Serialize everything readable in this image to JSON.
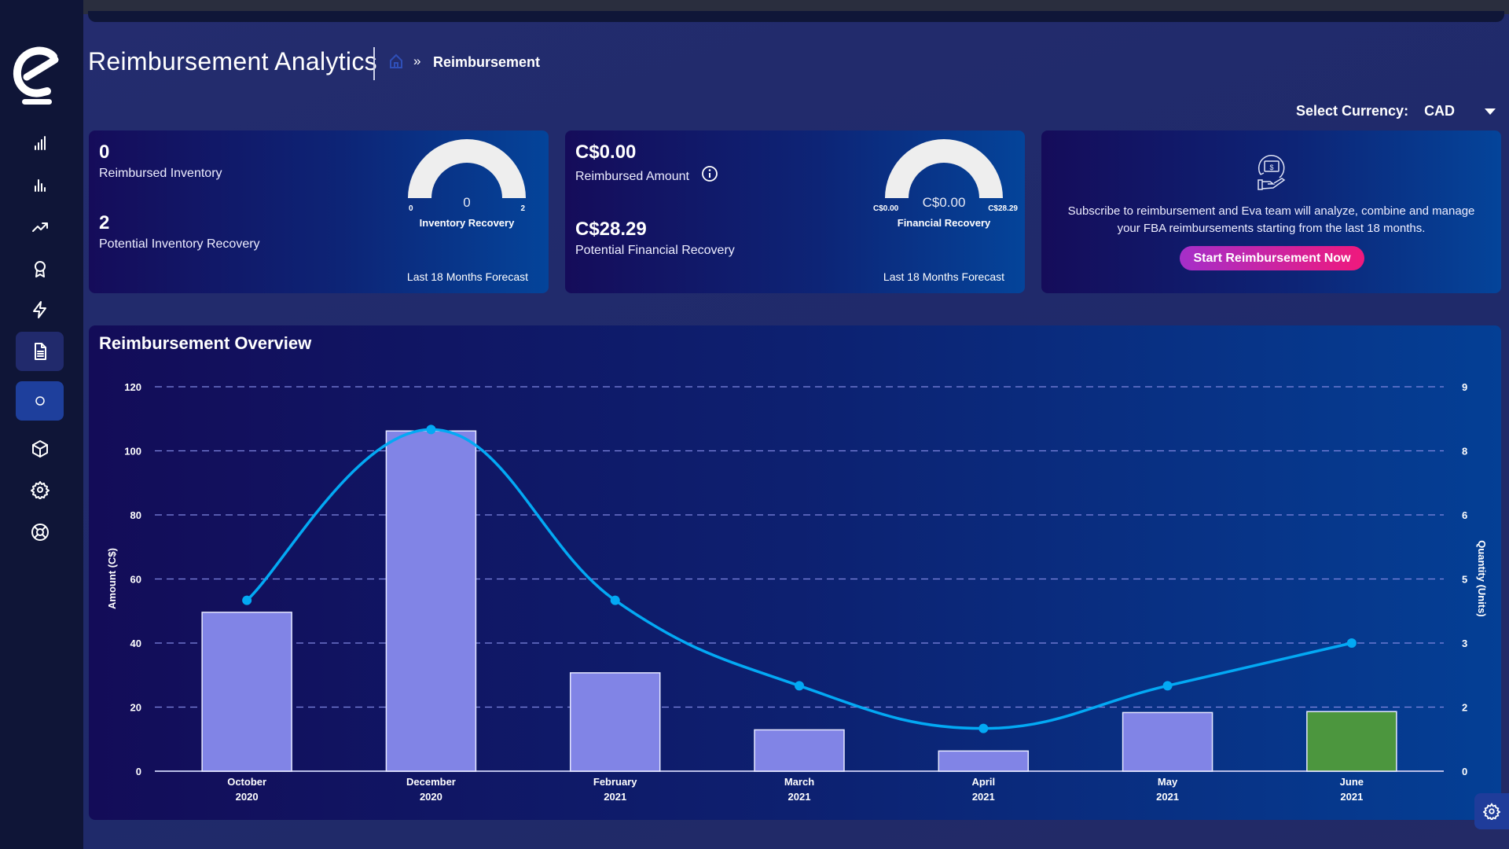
{
  "header": {
    "title": "Reimbursement Analytics",
    "breadcrumb_sep": "»",
    "breadcrumb_current": "Reimbursement"
  },
  "currency": {
    "label": "Select Currency:",
    "value": "CAD"
  },
  "sidebar": {
    "items": [
      {
        "icon": "bar-chart-icon"
      },
      {
        "icon": "bar-chart-alt-icon"
      },
      {
        "icon": "trending-up-icon"
      },
      {
        "icon": "award-icon"
      },
      {
        "icon": "lightning-icon"
      },
      {
        "icon": "document-icon",
        "active": true
      },
      {
        "icon": "circle-icon",
        "selected": true
      },
      {
        "icon": "package-icon"
      },
      {
        "icon": "settings-icon"
      },
      {
        "icon": "support-icon"
      }
    ]
  },
  "cards": {
    "inventory": {
      "reimbursed_value": "0",
      "reimbursed_label": "Reimbursed Inventory",
      "potential_value": "2",
      "potential_label": "Potential Inventory Recovery",
      "gauge": {
        "min": "0",
        "max": "2",
        "value": "0",
        "title": "Inventory Recovery",
        "fill_fraction": 0
      },
      "footer": "Last 18 Months Forecast"
    },
    "financial": {
      "reimbursed_value": "C$0.00",
      "reimbursed_label": "Reimbursed Amount",
      "potential_value": "C$28.29",
      "potential_label": "Potential Financial Recovery",
      "gauge": {
        "min": "C$0.00",
        "max": "C$28.29",
        "value": "C$0.00",
        "title": "Financial Recovery",
        "fill_fraction": 0
      },
      "footer": "Last 18 Months Forecast"
    },
    "subscribe": {
      "line1": "Subscribe to reimbursement and Eva team will analyze, combine and manage",
      "line2": "your FBA reimbursements starting from the last 18 months.",
      "button": "Start Reimbursement Now"
    }
  },
  "overview": {
    "title": "Reimbursement Overview"
  },
  "chart_data": {
    "type": "bar",
    "categories": [
      [
        "October",
        "2020"
      ],
      [
        "December",
        "2020"
      ],
      [
        "February",
        "2021"
      ],
      [
        "March",
        "2021"
      ],
      [
        "April",
        "2021"
      ],
      [
        "May",
        "2021"
      ],
      [
        "June",
        "2021"
      ]
    ],
    "ylabel": "Amount (C$)",
    "y2label": "Quantity (Units)",
    "ylim": [
      0,
      120
    ],
    "y2lim": [
      0,
      9
    ],
    "yticks": [
      "0",
      "20",
      "40",
      "60",
      "80",
      "100",
      "120"
    ],
    "y2ticks": [
      "0",
      "2",
      "3",
      "5",
      "6",
      "8",
      "9"
    ],
    "grid": true,
    "series": [
      {
        "type": "bar",
        "axis": "left",
        "values": [
          49.6,
          106.2,
          30.7,
          12.9,
          6.3,
          18.3,
          18.6
        ],
        "colors": [
          "#8184e6",
          "#8184e6",
          "#8184e6",
          "#8184e6",
          "#8184e6",
          "#8184e6",
          "#4c963e"
        ]
      },
      {
        "type": "line",
        "axis": "right",
        "values": [
          4,
          8,
          4,
          2,
          1,
          2,
          3
        ],
        "color": "#03a9f4"
      }
    ]
  }
}
